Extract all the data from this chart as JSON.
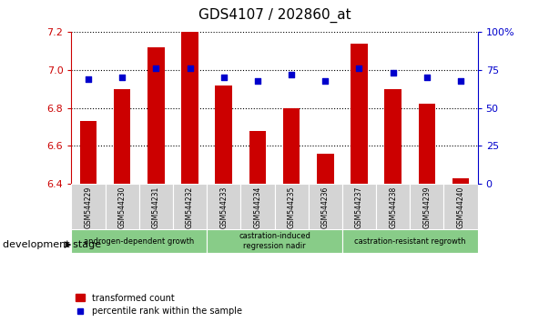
{
  "title": "GDS4107 / 202860_at",
  "samples": [
    "GSM544229",
    "GSM544230",
    "GSM544231",
    "GSM544232",
    "GSM544233",
    "GSM544234",
    "GSM544235",
    "GSM544236",
    "GSM544237",
    "GSM544238",
    "GSM544239",
    "GSM544240"
  ],
  "transformed_count": [
    6.73,
    6.9,
    7.12,
    7.2,
    6.92,
    6.68,
    6.8,
    6.56,
    7.14,
    6.9,
    6.82,
    6.43
  ],
  "percentile_rank": [
    69,
    70,
    76,
    76,
    70,
    68,
    72,
    68,
    76,
    73,
    70,
    68
  ],
  "ylim_left": [
    6.4,
    7.2
  ],
  "ylim_right": [
    0,
    100
  ],
  "yticks_left": [
    6.4,
    6.6,
    6.8,
    7.0,
    7.2
  ],
  "yticks_right": [
    0,
    25,
    50,
    75,
    100
  ],
  "bar_color": "#cc0000",
  "dot_color": "#0000cc",
  "bar_width": 0.5,
  "stage_label": "development stage",
  "legend_bar_label": "transformed count",
  "legend_dot_label": "percentile rank within the sample",
  "left_axis_color": "#cc0000",
  "right_axis_color": "#0000cc",
  "group_defs": [
    {
      "start": 0,
      "end": 3,
      "color": "#88cc88",
      "label": "androgen-dependent growth"
    },
    {
      "start": 4,
      "end": 7,
      "color": "#88cc88",
      "label": "castration-induced\nregression nadir"
    },
    {
      "start": 8,
      "end": 11,
      "color": "#88cc88",
      "label": "castration-resistant regrowth"
    }
  ]
}
